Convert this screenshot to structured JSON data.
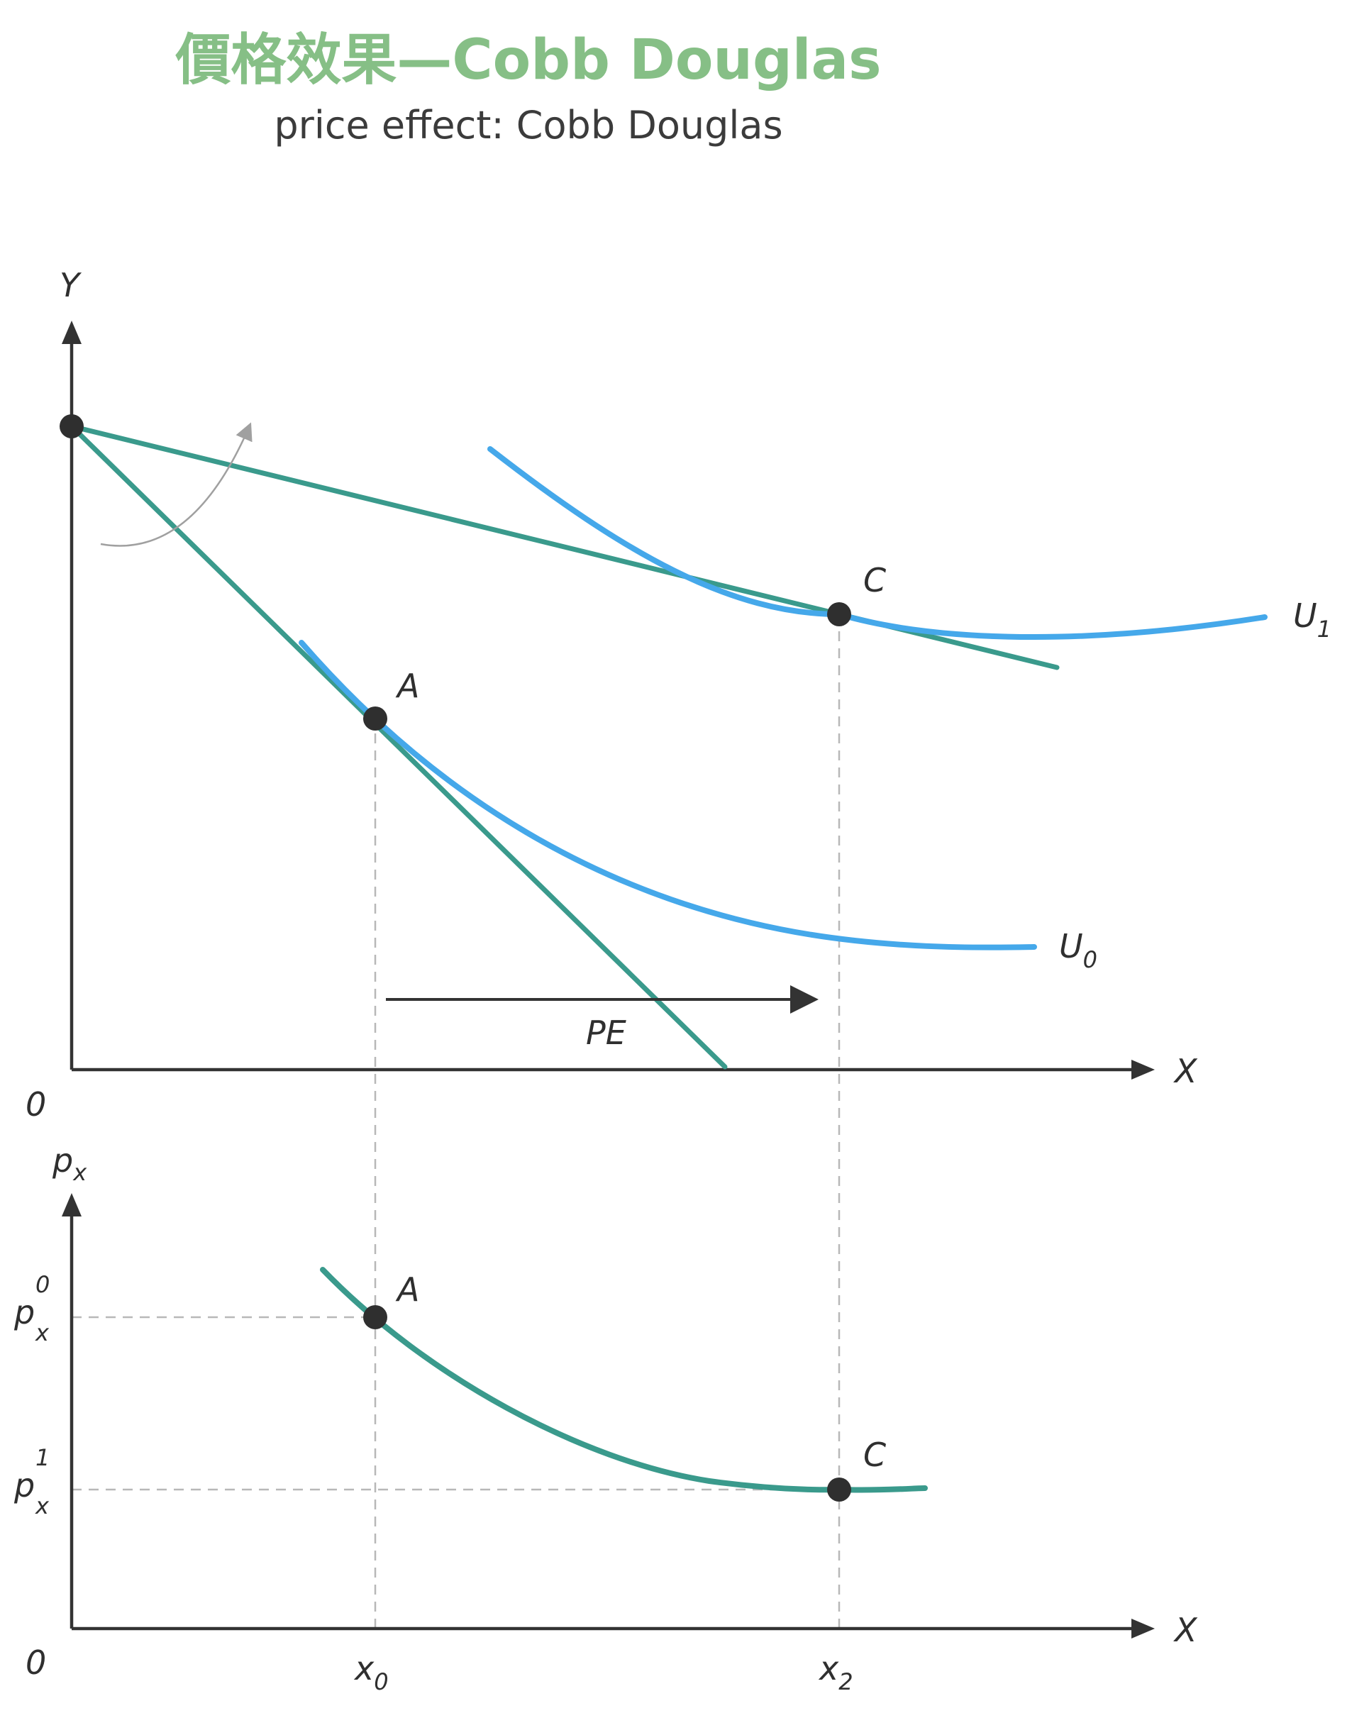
{
  "header": {
    "title": "價格效果—Cobb Douglas",
    "subtitle": "price effect: Cobb Douglas"
  },
  "top_panel": {
    "y_axis_label": "Y",
    "x_axis_label": "X",
    "origin_label": "0",
    "points": [
      {
        "label": "A"
      },
      {
        "label": "C"
      }
    ],
    "curves": [
      {
        "label": "U",
        "sub": "0"
      },
      {
        "label": "U",
        "sub": "1"
      }
    ],
    "effect_label": "PE"
  },
  "bottom_panel": {
    "y_axis_label": "p",
    "y_axis_sub": "x",
    "x_axis_label": "X",
    "origin_label": "0",
    "price_ticks": [
      {
        "base": "p",
        "sup": "0",
        "sub": "x"
      },
      {
        "base": "p",
        "sup": "1",
        "sub": "x"
      }
    ],
    "quantity_ticks": [
      {
        "base": "x",
        "sub": "0"
      },
      {
        "base": "x",
        "sub": "2"
      }
    ],
    "points": [
      {
        "label": "A"
      },
      {
        "label": "C"
      }
    ]
  },
  "colors": {
    "title": "#86bf86",
    "budget_line": "#3a9a8c",
    "indifference_curve": "#45a8ea",
    "demand_curve": "#3a9a8c",
    "points": "#2f2f2f",
    "axes": "#333333"
  }
}
